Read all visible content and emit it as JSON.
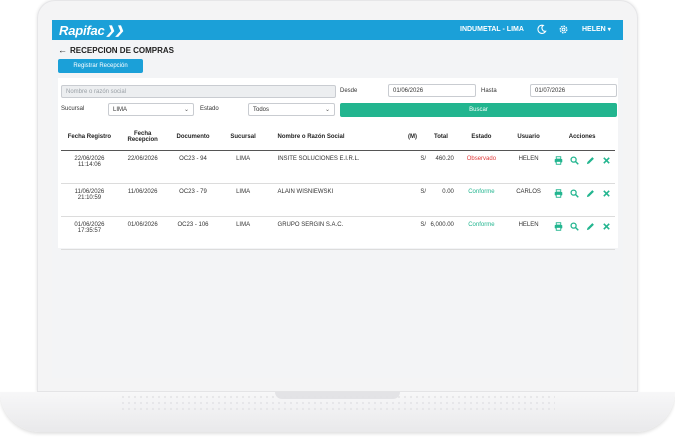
{
  "app": {
    "logo": "Rapifac",
    "company": "INDUMETAL - LIMA",
    "user": "HELEN"
  },
  "page": {
    "title": "RECEPCION DE COMPRAS",
    "register_button": "Registrar Recepción"
  },
  "filters": {
    "search_placeholder": "Nombre o razón social",
    "desde_label": "Desde",
    "desde_value": "01/06/2026",
    "hasta_label": "Hasta",
    "hasta_value": "01/07/2026",
    "sucursal_label": "Sucursal",
    "sucursal_value": "LIMA",
    "estado_label": "Estado",
    "estado_value": "Todos",
    "search_button": "Buscar"
  },
  "table": {
    "headers": {
      "fecha_registro": "Fecha Registro",
      "fecha_recepcion": "Fecha Recepcion",
      "documento": "Documento",
      "sucursal": "Sucursal",
      "nombre": "Nombre o Razón Social",
      "moneda": "(M)",
      "total": "Total",
      "estado": "Estado",
      "usuario": "Usuario",
      "acciones": "Acciones"
    },
    "rows": [
      {
        "fecha_registro": "22/06/2026",
        "hora": "11:14:06",
        "fecha_recepcion": "22/06/2026",
        "documento": "OC23 - 94",
        "sucursal": "LIMA",
        "nombre": "INSITE SOLUCIONES E.I.R.L.",
        "moneda": "S/",
        "total": "460.20",
        "estado": "Observado",
        "usuario": "HELEN"
      },
      {
        "fecha_registro": "11/06/2026",
        "hora": "21:10:59",
        "fecha_recepcion": "11/06/2026",
        "documento": "OC23 - 79",
        "sucursal": "LIMA",
        "nombre": "ALAIN WISNIEWSKI",
        "moneda": "S/",
        "total": "0.00",
        "estado": "Conforme",
        "usuario": "CARLOS"
      },
      {
        "fecha_registro": "01/06/2026",
        "hora": "17:35:57",
        "fecha_recepcion": "01/06/2026",
        "documento": "OC23 - 106",
        "sucursal": "LIMA",
        "nombre": "GRUPO SERGIN S.A.C.",
        "moneda": "S/",
        "total": "6,000.00",
        "estado": "Conforme",
        "usuario": "HELEN"
      }
    ]
  },
  "colors": {
    "primary": "#1ba0d8",
    "success": "#22b58f",
    "danger": "#e03b3b"
  },
  "icons": [
    "back-arrow-icon",
    "moon-icon",
    "gear-icon",
    "chevron-down-icon",
    "print-icon",
    "search-icon",
    "pencil-icon",
    "close-icon"
  ]
}
